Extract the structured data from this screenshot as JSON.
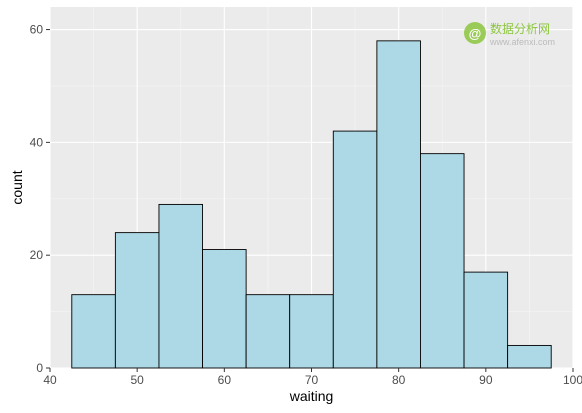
{
  "chart_data": {
    "type": "bar",
    "subtype": "histogram",
    "xlabel": "waiting",
    "ylabel": "count",
    "xlim": [
      40,
      100
    ],
    "ylim": [
      0,
      60
    ],
    "x_ticks": [
      40,
      50,
      60,
      70,
      80,
      90,
      100
    ],
    "y_ticks": [
      0,
      20,
      40,
      60
    ],
    "bins": [
      {
        "start": 42.5,
        "end": 47.5,
        "count": 13
      },
      {
        "start": 47.5,
        "end": 52.5,
        "count": 24
      },
      {
        "start": 52.5,
        "end": 57.5,
        "count": 29
      },
      {
        "start": 57.5,
        "end": 62.5,
        "count": 21
      },
      {
        "start": 62.5,
        "end": 67.5,
        "count": 13
      },
      {
        "start": 67.5,
        "end": 72.5,
        "count": 13
      },
      {
        "start": 72.5,
        "end": 77.5,
        "count": 42
      },
      {
        "start": 77.5,
        "end": 82.5,
        "count": 58
      },
      {
        "start": 82.5,
        "end": 87.5,
        "count": 38
      },
      {
        "start": 87.5,
        "end": 92.5,
        "count": 17
      },
      {
        "start": 92.5,
        "end": 97.5,
        "count": 4
      }
    ],
    "grid": true,
    "colors": {
      "panel_background": "#ebebeb",
      "grid_major": "#ffffff",
      "grid_minor": "#f5f5f5",
      "bar_fill": "#add8e6",
      "bar_outline": "#000000"
    }
  },
  "watermark": {
    "glyph": "@",
    "text": "数据分析网",
    "url": "www.afenxi.com"
  }
}
